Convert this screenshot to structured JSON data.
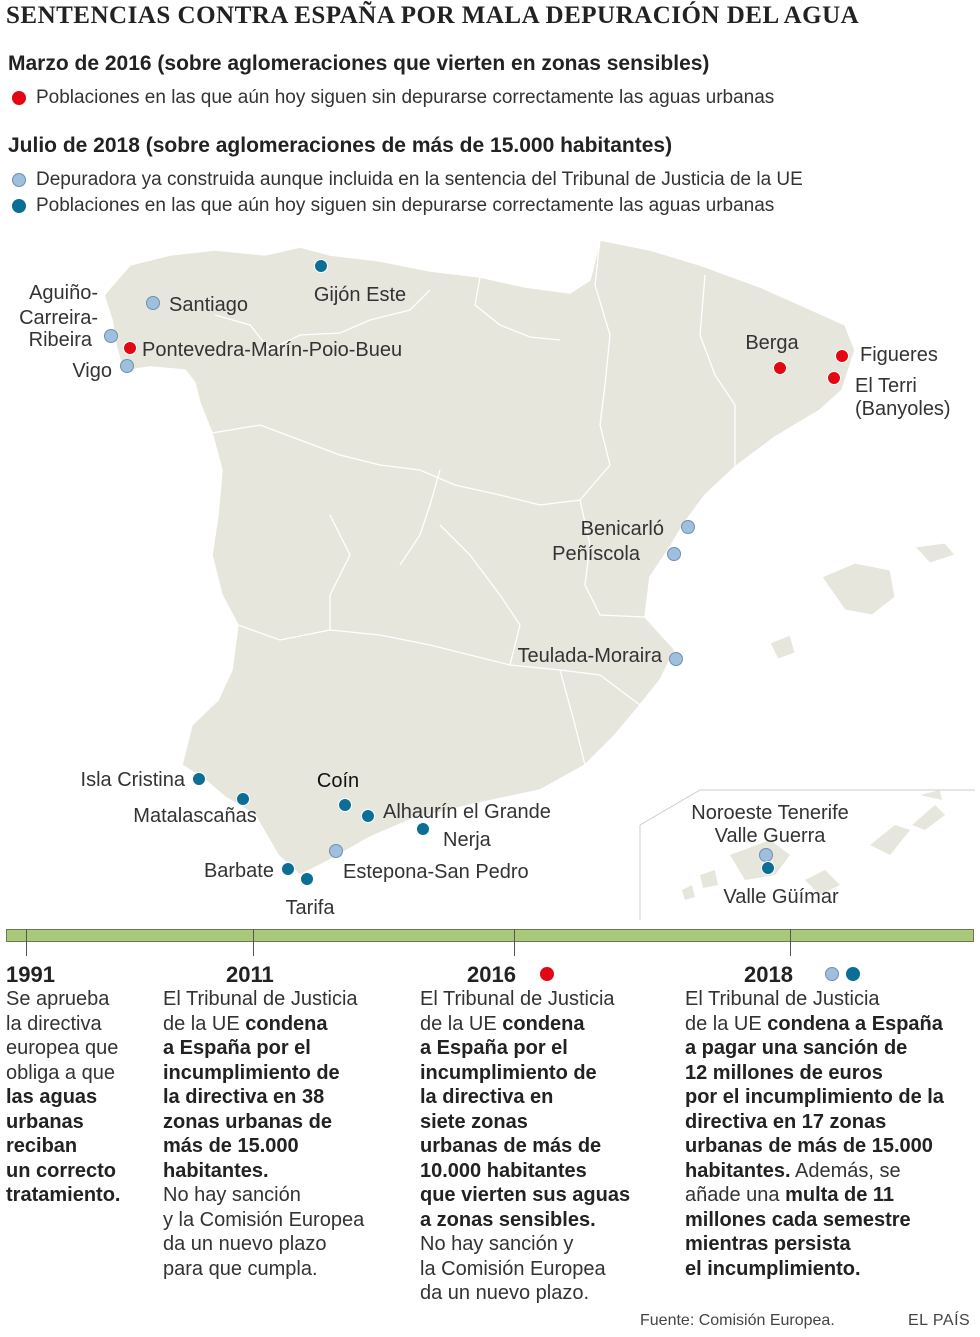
{
  "title": "SENTENCIAS CONTRA ESPAÑA POR MALA DEPURACIÓN DEL AGUA",
  "section_2016": {
    "heading": "Marzo de 2016 (sobre aglomeraciones que vierten en zonas sensibles)",
    "legend_red": "Poblaciones en las que aún hoy siguen sin depurarse correctamente las aguas urbanas"
  },
  "section_2018": {
    "heading": "Julio de 2018 (sobre aglomeraciones de más de 15.000 habitantes)",
    "legend_light": "Depuradora ya construida aunque incluida en la sentencia del Tribunal de Justicia de la UE",
    "legend_dark": "Poblaciones en las que aún hoy siguen sin depurarse correctamente las aguas urbanas"
  },
  "colors": {
    "red": "#e30613",
    "light_blue": "#9fbfdf",
    "dark_blue": "#0a6e95",
    "land": "#e6e6dc",
    "timeline": "#a9c97a"
  },
  "map_places": [
    {
      "label": "Gijón Este",
      "type": "dark"
    },
    {
      "label": "Santiago",
      "type": "light"
    },
    {
      "label": "Aguiño-",
      "type": "light"
    },
    {
      "label": "Carreira-",
      "type": "none"
    },
    {
      "label": "Ribeira",
      "type": "none"
    },
    {
      "label": "Pontevedra-Marín-Poio-Bueu",
      "type": "red"
    },
    {
      "label": "Vigo",
      "type": "light"
    },
    {
      "label": "Berga",
      "type": "red"
    },
    {
      "label": "Figueres",
      "type": "red"
    },
    {
      "label": "El Terri",
      "type": "red"
    },
    {
      "label": "(Banyoles)",
      "type": "none"
    },
    {
      "label": "Benicarló",
      "type": "light"
    },
    {
      "label": "Peñíscola",
      "type": "light"
    },
    {
      "label": "Teulada-Moraira",
      "type": "light"
    },
    {
      "label": "Isla Cristina",
      "type": "dark"
    },
    {
      "label": "Matalascañas",
      "type": "dark"
    },
    {
      "label": "Coín",
      "type": "dark"
    },
    {
      "label": "Alhaurín el Grande",
      "type": "dark"
    },
    {
      "label": "Nerja",
      "type": "dark"
    },
    {
      "label": "Estepona-San Pedro",
      "type": "light"
    },
    {
      "label": "Barbate",
      "type": "dark"
    },
    {
      "label": "Tarifa",
      "type": "dark"
    },
    {
      "label": "Noroeste Tenerife",
      "type": "light"
    },
    {
      "label": "Valle Guerra",
      "type": "none"
    },
    {
      "label": "Valle Güímar",
      "type": "dark"
    }
  ],
  "timeline": {
    "y1991": {
      "year": "1991",
      "t1": "Se aprueba",
      "t2": "la directiva",
      "t3": "europea que",
      "t4": "obliga a que",
      "b1": "las aguas",
      "b2": "urbanas",
      "b3": "reciban",
      "b4": "un correcto",
      "b5": "tratamiento."
    },
    "y2011": {
      "year": "2011",
      "t1": "El Tribunal de Justicia",
      "t2": "de la UE ",
      "b1": "condena",
      "b2": "a España por el",
      "b3": "incumplimiento de",
      "b4": "la directiva en 38",
      "b5": "zonas urbanas de",
      "b6": "más de 15.000",
      "b7": "habitantes.",
      "t3": "No hay sanción",
      "t4": "y la Comisión Europea",
      "t5": "da un nuevo plazo",
      "t6": "para que cumpla."
    },
    "y2016": {
      "year": "2016",
      "t1": "El Tribunal de Justicia",
      "t2": "de la UE ",
      "b1": "condena",
      "b2": "a España por el",
      "b3": "incumplimiento de",
      "b4": "la directiva en",
      "b5": "siete zonas",
      "b6": "urbanas de más de",
      "b7": "10.000 habitantes",
      "b8": "que vierten sus aguas",
      "b9": "a zonas sensibles.",
      "t3": "No hay sanción y",
      "t4": "la Comisión Europea",
      "t5": "da un nuevo plazo."
    },
    "y2018": {
      "year": "2018",
      "t1": "El Tribunal de Justicia",
      "t2": "de la UE ",
      "b1": "condena a España",
      "b2": "a pagar una sanción de",
      "b3": "12 millones de euros",
      "b4": "por el incumplimiento de la",
      "b5": "directiva en 17 zonas",
      "b6": "urbanas de más de 15.000",
      "b7": "habitantes.",
      "t3": " Además, se",
      "t4": "añade una ",
      "b8": "multa de 11",
      "b9": "millones cada semestre",
      "b10": "mientras persista",
      "b11": "el incumplimiento."
    }
  },
  "source": "Fuente: Comisión Europea.",
  "brand": "EL PAÍS"
}
